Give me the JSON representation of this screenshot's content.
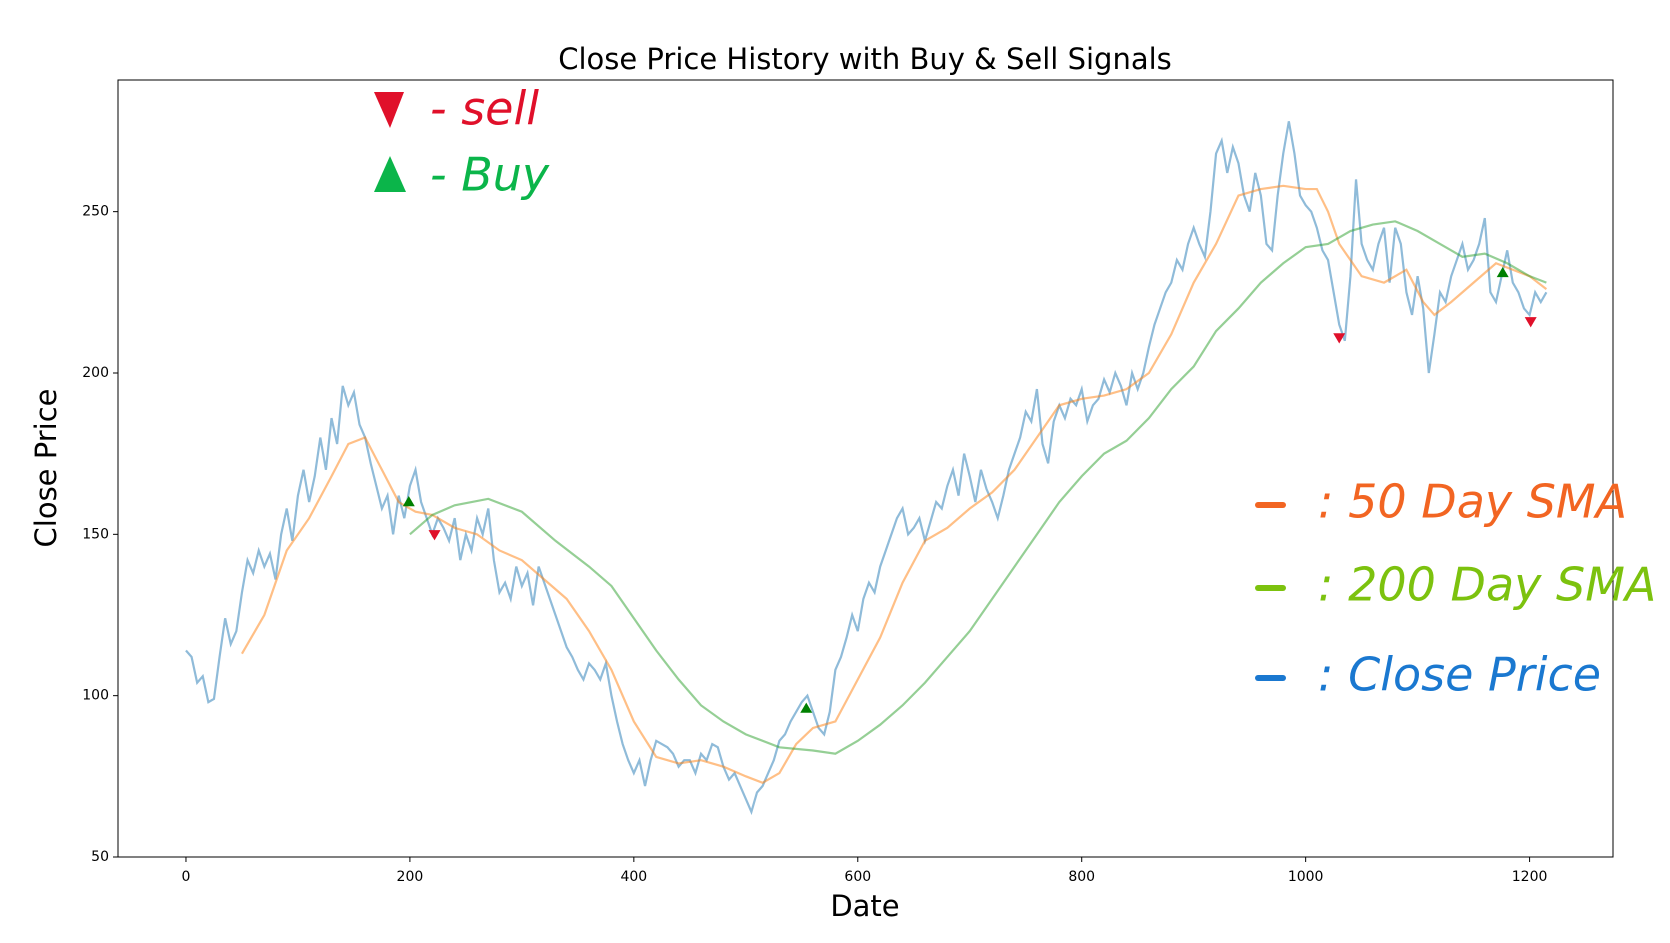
{
  "chart_data": {
    "type": "line",
    "title": "Close Price History with Buy & Sell Signals",
    "xlabel": "Date",
    "ylabel": "Close Price",
    "xlim": [
      -60.7,
      1274.5
    ],
    "ylim": [
      50,
      290.8
    ],
    "xticks": [
      0,
      200,
      400,
      600,
      800,
      1000,
      1200
    ],
    "yticks": [
      50,
      100,
      150,
      200,
      250
    ],
    "series": [
      {
        "color": "#1f77b4",
        "x": [
          0,
          5,
          10,
          15,
          20,
          25,
          30,
          35,
          40,
          45,
          50,
          55,
          60,
          65,
          70,
          75,
          80,
          85,
          90,
          95,
          100,
          105,
          110,
          115,
          120,
          125,
          130,
          135,
          140,
          145,
          150,
          155,
          160,
          165,
          170,
          175,
          180,
          185,
          190,
          195,
          200,
          205,
          210,
          215,
          220,
          225,
          230,
          235,
          240,
          245,
          250,
          255,
          260,
          265,
          270,
          275,
          280,
          285,
          290,
          295,
          300,
          305,
          310,
          315,
          320,
          325,
          330,
          335,
          340,
          345,
          350,
          355,
          360,
          365,
          370,
          375,
          380,
          385,
          390,
          395,
          400,
          405,
          410,
          415,
          420,
          425,
          430,
          435,
          440,
          445,
          450,
          455,
          460,
          465,
          470,
          475,
          480,
          485,
          490,
          495,
          500,
          505,
          510,
          515,
          520,
          525,
          530,
          535,
          540,
          545,
          550,
          555,
          560,
          565,
          570,
          575,
          580,
          585,
          590,
          595,
          600,
          605,
          610,
          615,
          620,
          625,
          630,
          635,
          640,
          645,
          650,
          655,
          660,
          665,
          670,
          675,
          680,
          685,
          690,
          695,
          700,
          705,
          710,
          715,
          720,
          725,
          730,
          735,
          740,
          745,
          750,
          755,
          760,
          765,
          770,
          775,
          780,
          785,
          790,
          795,
          800,
          805,
          810,
          815,
          820,
          825,
          830,
          835,
          840,
          845,
          850,
          855,
          860,
          865,
          870,
          875,
          880,
          885,
          890,
          895,
          900,
          905,
          910,
          915,
          920,
          925,
          930,
          935,
          940,
          945,
          950,
          955,
          960,
          965,
          970,
          975,
          980,
          985,
          990,
          995,
          1000,
          1005,
          1010,
          1015,
          1020,
          1025,
          1030,
          1035,
          1040,
          1045,
          1050,
          1055,
          1060,
          1065,
          1070,
          1075,
          1080,
          1085,
          1090,
          1095,
          1100,
          1105,
          1110,
          1115,
          1120,
          1125,
          1130,
          1135,
          1140,
          1145,
          1150,
          1155,
          1160,
          1165,
          1170,
          1175,
          1180,
          1185,
          1190,
          1195,
          1200,
          1205,
          1210,
          1215
        ],
        "values": [
          114,
          112,
          104,
          106,
          98,
          99,
          112,
          124,
          116,
          120,
          132,
          142,
          138,
          145,
          140,
          144,
          136,
          150,
          158,
          148,
          162,
          170,
          160,
          168,
          180,
          170,
          186,
          178,
          196,
          190,
          194,
          184,
          180,
          172,
          165,
          158,
          162,
          150,
          162,
          155,
          165,
          170,
          160,
          155,
          150,
          155,
          152,
          148,
          155,
          142,
          150,
          145,
          155,
          150,
          158,
          142,
          132,
          135,
          130,
          140,
          134,
          138,
          128,
          140,
          135,
          130,
          125,
          120,
          115,
          112,
          108,
          105,
          110,
          108,
          105,
          110,
          100,
          92,
          85,
          80,
          76,
          80,
          72,
          80,
          86,
          85,
          84,
          82,
          78,
          80,
          80,
          76,
          82,
          80,
          85,
          84,
          78,
          74,
          76,
          72,
          68,
          64,
          70,
          72,
          76,
          80,
          86,
          88,
          92,
          95,
          98,
          100,
          95,
          90,
          88,
          95,
          108,
          112,
          118,
          125,
          120,
          130,
          135,
          132,
          140,
          145,
          150,
          155,
          158,
          150,
          152,
          155,
          148,
          154,
          160,
          158,
          165,
          170,
          162,
          175,
          168,
          160,
          170,
          164,
          160,
          155,
          162,
          170,
          175,
          180,
          188,
          185,
          195,
          178,
          172,
          185,
          190,
          186,
          192,
          190,
          195,
          185,
          190,
          192,
          198,
          194,
          200,
          196,
          190,
          200,
          195,
          200,
          208,
          215,
          220,
          225,
          228,
          235,
          232,
          240,
          245,
          240,
          236,
          250,
          268,
          272,
          262,
          270,
          265,
          255,
          250,
          262,
          255,
          240,
          238,
          255,
          268,
          278,
          268,
          255,
          252,
          250,
          245,
          238,
          235,
          225,
          215,
          210,
          230,
          260,
          240,
          235,
          232,
          240,
          245,
          228,
          245,
          240,
          225,
          218,
          230,
          220,
          200,
          212,
          225,
          222,
          230,
          235,
          240,
          232,
          235,
          240,
          248,
          225,
          222,
          230,
          238,
          228,
          225,
          220,
          218,
          225,
          222,
          225
        ]
      },
      {
        "color": "#ff7f0e",
        "x": [
          50,
          70,
          90,
          110,
          130,
          145,
          160,
          175,
          190,
          205,
          220,
          240,
          260,
          280,
          300,
          320,
          340,
          360,
          380,
          400,
          420,
          440,
          460,
          480,
          500,
          515,
          530,
          545,
          560,
          580,
          600,
          620,
          640,
          660,
          680,
          700,
          720,
          740,
          760,
          780,
          800,
          820,
          840,
          860,
          880,
          900,
          920,
          940,
          960,
          980,
          1000,
          1010,
          1020,
          1030,
          1040,
          1050,
          1070,
          1090,
          1105,
          1115,
          1130,
          1150,
          1170,
          1185,
          1200,
          1215
        ],
        "values": [
          113,
          125,
          145,
          155,
          168,
          178,
          180,
          170,
          160,
          157,
          156,
          152,
          150,
          145,
          142,
          136,
          130,
          120,
          108,
          92,
          81,
          79,
          80,
          78,
          75,
          73,
          76,
          85,
          90,
          92,
          105,
          118,
          135,
          148,
          152,
          158,
          163,
          170,
          180,
          190,
          192,
          193,
          195,
          200,
          212,
          228,
          240,
          255,
          257,
          258,
          257,
          257,
          250,
          240,
          235,
          230,
          228,
          232,
          222,
          218,
          222,
          228,
          234,
          232,
          230,
          226
        ]
      },
      {
        "color": "#2ca02c",
        "x": [
          200,
          220,
          240,
          270,
          300,
          330,
          360,
          380,
          400,
          420,
          440,
          460,
          480,
          500,
          530,
          560,
          580,
          600,
          620,
          640,
          660,
          680,
          700,
          720,
          740,
          760,
          780,
          800,
          820,
          840,
          860,
          880,
          900,
          920,
          940,
          960,
          980,
          1000,
          1020,
          1040,
          1060,
          1080,
          1100,
          1120,
          1140,
          1160,
          1180,
          1200,
          1215
        ],
        "values": [
          150,
          156,
          159,
          161,
          157,
          148,
          140,
          134,
          124,
          114,
          105,
          97,
          92,
          88,
          84,
          83,
          82,
          86,
          91,
          97,
          104,
          112,
          120,
          130,
          140,
          150,
          160,
          168,
          175,
          179,
          186,
          195,
          202,
          213,
          220,
          228,
          234,
          239,
          240,
          244,
          246,
          247,
          244,
          240,
          236,
          237,
          234,
          230,
          228
        ]
      }
    ],
    "signals": [
      {
        "marker": "up",
        "color": "#008000",
        "x": [
          199,
          554,
          1176
        ],
        "values": [
          160,
          96,
          231
        ]
      },
      {
        "marker": "down",
        "color": "#e0102a",
        "x": [
          222,
          1030,
          1201
        ],
        "values": [
          150,
          211,
          216
        ]
      }
    ],
    "annotations": [
      {
        "text": "- sell",
        "color": "#e0102a"
      },
      {
        "text": "- Buy",
        "color": "#0bb54a"
      },
      {
        "text": ": 50 Day SMA",
        "color": "#f26522"
      },
      {
        "text": ": 200 Day SMA",
        "color": "#7cc20e"
      },
      {
        "text": ": Close Price",
        "color": "#1a78d0"
      }
    ]
  }
}
